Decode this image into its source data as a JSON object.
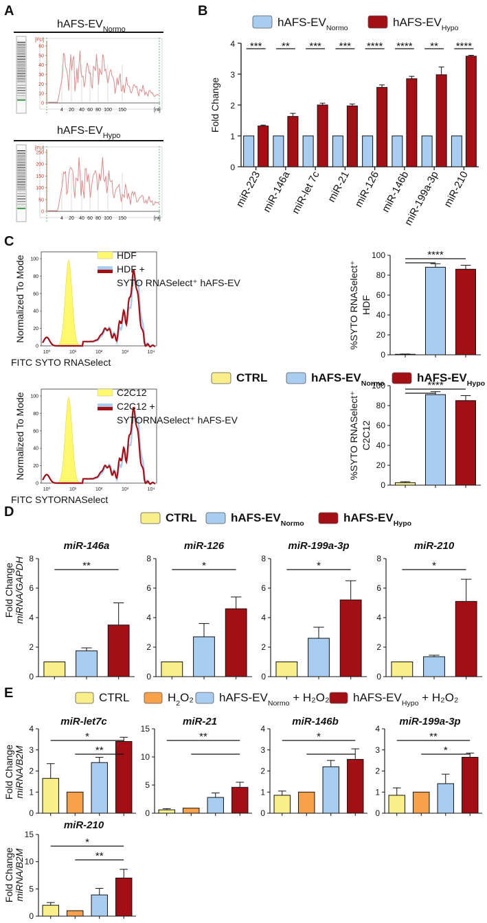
{
  "colors": {
    "ctrl": "#f9ee8a",
    "h2o2": "#f7a14a",
    "normo": "#a9cdf1",
    "hypo": "#a40f16",
    "bioanalyzer_trace": "#d98a8a",
    "bioanalyzer_axis": "#cc2222",
    "histogram_fill": "#fff86a"
  },
  "panels": {
    "A": {
      "label": "A",
      "traces": [
        {
          "title": "hAFS-EV",
          "sub": "Normo",
          "fu_label": "[FU]",
          "y_ticks": [
            "60",
            "50",
            "40",
            "30",
            "20",
            "10",
            "0"
          ],
          "x_ticks": [
            "4",
            "20",
            "40",
            "60",
            "80",
            "100",
            "150"
          ],
          "x_unit": "[nt]"
        },
        {
          "title": "hAFS-EV",
          "sub": "Hypo",
          "fu_label": "[FU]",
          "y_ticks": [
            "250",
            "200",
            "150",
            "100",
            "50",
            "0"
          ],
          "x_ticks": [
            "4",
            "20",
            "40",
            "60",
            "80",
            "100",
            "150"
          ],
          "x_unit": "[nt]"
        }
      ]
    },
    "B": {
      "label": "B",
      "legend": [
        {
          "text": "hAFS-EV",
          "sub": "Normo",
          "color_key": "normo"
        },
        {
          "text": "hAFS-EV",
          "sub": "Hypo",
          "color_key": "hypo"
        }
      ]
    },
    "C": {
      "label": "C",
      "legend": [
        {
          "text": "CTRL",
          "sub": "",
          "color_key": "ctrl"
        },
        {
          "text": "hAFS-EV",
          "sub": "Normo",
          "color_key": "normo"
        },
        {
          "text": "hAFS-EV",
          "sub": "Hypo",
          "color_key": "hypo"
        }
      ],
      "histograms": [
        {
          "ylabel": "Normalized To Mode",
          "xlabel": "FITC SYTO RNASelect",
          "legend": [
            "HDF",
            "HDF +",
            "SYTO RNASelect⁺ hAFS-EV"
          ],
          "y_ticks": [
            "100",
            "80",
            "60",
            "40",
            "20",
            "0"
          ],
          "x_ticks": [
            "10⁰",
            "10¹",
            "10²",
            "10³",
            "10⁴"
          ]
        },
        {
          "ylabel": "Normalized To Mode",
          "xlabel": "FITC SYTORNASelect",
          "legend": [
            "C2C12",
            "C2C12 +",
            "SYTORNASelect⁺ hAFS-EV"
          ],
          "y_ticks": [
            "100",
            "80",
            "60",
            "40",
            "20",
            "0"
          ],
          "x_ticks": [
            "10⁰",
            "10¹",
            "10²",
            "10³",
            "10⁴"
          ]
        }
      ]
    },
    "D": {
      "label": "D",
      "legend": [
        {
          "text": "CTRL",
          "sub": "",
          "color_key": "ctrl"
        },
        {
          "text": "hAFS-EV",
          "sub": "Normo",
          "color_key": "normo"
        },
        {
          "text": "hAFS-EV",
          "sub": "Hypo",
          "color_key": "hypo"
        }
      ],
      "ylabel_1": "Fold Change",
      "ylabel_2": "miRNA/GAPDH"
    },
    "E": {
      "label": "E",
      "legend": [
        {
          "text": "CTRL",
          "sub": "",
          "post": "",
          "color_key": "ctrl"
        },
        {
          "text": "H",
          "sub": "2",
          "post": "O₂",
          "color_key": "h2o2"
        },
        {
          "text": "hAFS-EV",
          "sub": "Normo",
          "post": " + H₂O₂",
          "color_key": "normo"
        },
        {
          "text": "hAFS-EV",
          "sub": "Hypo",
          "post": " + H₂O₂",
          "color_key": "hypo"
        }
      ],
      "ylabel_1": "Fold Change",
      "ylabel_2": "miRNA/B2M"
    }
  },
  "chart_data": [
    {
      "id": "B",
      "type": "bar",
      "title": "",
      "xlabel": "",
      "ylabel": "Fold Change",
      "ylim": [
        0,
        4
      ],
      "yticks": [
        0,
        1,
        2,
        3,
        4
      ],
      "categories": [
        "miR-223",
        "miR-146a",
        "miR-let 7c",
        "miR-21",
        "miR-126",
        "miR-146b",
        "miR-199a-3p",
        "miR-210"
      ],
      "series": [
        {
          "name": "hAFS-EV Normo",
          "values": [
            1,
            1,
            1,
            1,
            1,
            1,
            1,
            1
          ],
          "errors": [
            0,
            0,
            0,
            0,
            0,
            0,
            0,
            0
          ]
        },
        {
          "name": "hAFS-EV Hypo",
          "values": [
            1.32,
            1.63,
            2.0,
            1.97,
            2.57,
            2.85,
            2.98,
            3.58
          ],
          "errors": [
            0.03,
            0.1,
            0.06,
            0.06,
            0.08,
            0.08,
            0.25,
            0.03
          ]
        }
      ],
      "significance": [
        "***",
        "**",
        "***",
        "***",
        "****",
        "****",
        "**",
        "****"
      ]
    },
    {
      "id": "C-HDF",
      "type": "bar",
      "ylabel": "%SYTO RNASelect⁺ HDF",
      "ylim": [
        0,
        100
      ],
      "yticks": [
        0,
        20,
        40,
        60,
        80,
        100
      ],
      "categories": [
        "CTRL",
        "hAFS-EV Normo",
        "hAFS-EV Hypo"
      ],
      "values": [
        0.5,
        88,
        86
      ],
      "errors": [
        0.3,
        3.5,
        4
      ],
      "significance": [
        "****"
      ]
    },
    {
      "id": "C-C2C12",
      "type": "bar",
      "ylabel": "%SYTO RNASelect⁺ C2C12",
      "ylim": [
        0,
        100
      ],
      "yticks": [
        0,
        20,
        40,
        60,
        80,
        100
      ],
      "categories": [
        "CTRL",
        "hAFS-EV Normo",
        "hAFS-EV Hypo"
      ],
      "values": [
        2.5,
        91,
        85
      ],
      "errors": [
        1,
        3,
        5
      ],
      "significance": [
        "****"
      ]
    },
    {
      "id": "D1",
      "type": "bar",
      "title": "miR-146a",
      "ylim": [
        0,
        8
      ],
      "yticks": [
        0,
        2,
        4,
        6,
        8
      ],
      "categories": [
        "CTRL",
        "hAFS-EV Normo",
        "hAFS-EV Hypo"
      ],
      "values": [
        1,
        1.75,
        3.5
      ],
      "errors": [
        0,
        0.2,
        1.5
      ],
      "significance": [
        "**"
      ]
    },
    {
      "id": "D2",
      "type": "bar",
      "title": "miR-126",
      "ylim": [
        0,
        8
      ],
      "yticks": [
        0,
        2,
        4,
        6,
        8
      ],
      "categories": [
        "CTRL",
        "hAFS-EV Normo",
        "hAFS-EV Hypo"
      ],
      "values": [
        1,
        2.7,
        4.6
      ],
      "errors": [
        0,
        0.9,
        0.8
      ],
      "significance": [
        "*"
      ]
    },
    {
      "id": "D3",
      "type": "bar",
      "title": "miR-199a-3p",
      "ylim": [
        0,
        8
      ],
      "yticks": [
        0,
        2,
        4,
        6,
        8
      ],
      "categories": [
        "CTRL",
        "hAFS-EV Normo",
        "hAFS-EV Hypo"
      ],
      "values": [
        1,
        2.6,
        5.2
      ],
      "errors": [
        0,
        0.75,
        1.3
      ],
      "significance": [
        "*"
      ]
    },
    {
      "id": "D4",
      "type": "bar",
      "title": "miR-210",
      "ylim": [
        0,
        8
      ],
      "yticks": [
        0,
        2,
        4,
        6,
        8
      ],
      "categories": [
        "CTRL",
        "hAFS-EV Normo",
        "hAFS-EV Hypo"
      ],
      "values": [
        1,
        1.35,
        5.1
      ],
      "errors": [
        0,
        0.1,
        1.5
      ],
      "significance": [
        "*"
      ]
    },
    {
      "id": "E1",
      "type": "bar",
      "title": "miR-let7c",
      "ylim": [
        0,
        4
      ],
      "yticks": [
        0,
        1,
        2,
        3,
        4
      ],
      "categories": [
        "CTRL",
        "H2O2",
        "hAFS-EV Normo + H2O2",
        "hAFS-EV Hypo + H2O2"
      ],
      "values": [
        1.65,
        1.0,
        2.4,
        3.4
      ],
      "errors": [
        0.7,
        0,
        0.25,
        0.2
      ],
      "significance": [
        "*",
        "**"
      ]
    },
    {
      "id": "E2",
      "type": "bar",
      "title": "miR-21",
      "ylim": [
        0,
        15
      ],
      "yticks": [
        0,
        5,
        10,
        15
      ],
      "categories": [
        "CTRL",
        "H2O2",
        "hAFS-EV Normo + H2O2",
        "hAFS-EV Hypo + H2O2"
      ],
      "values": [
        0.6,
        0.9,
        2.8,
        4.6
      ],
      "errors": [
        0.2,
        0,
        0.8,
        0.9
      ],
      "significance": [
        "**",
        ""
      ]
    },
    {
      "id": "E3",
      "type": "bar",
      "title": "miR-146b",
      "ylim": [
        0,
        4
      ],
      "yticks": [
        0,
        1,
        2,
        3,
        4
      ],
      "categories": [
        "CTRL",
        "H2O2",
        "hAFS-EV Normo + H2O2",
        "hAFS-EV Hypo + H2O2"
      ],
      "values": [
        0.85,
        1.0,
        2.2,
        2.55
      ],
      "errors": [
        0.2,
        0,
        0.3,
        0.5
      ],
      "significance": [
        "*",
        ""
      ]
    },
    {
      "id": "E4",
      "type": "bar",
      "title": "miR-199a-3p",
      "ylim": [
        0,
        4
      ],
      "yticks": [
        0,
        1,
        2,
        3,
        4
      ],
      "categories": [
        "CTRL",
        "H2O2",
        "hAFS-EV Normo + H2O2",
        "hAFS-EV Hypo + H2O2"
      ],
      "values": [
        0.85,
        1.0,
        1.4,
        2.65
      ],
      "errors": [
        0.35,
        0,
        0.45,
        0.2
      ],
      "significance": [
        "**",
        "*"
      ]
    },
    {
      "id": "E5",
      "type": "bar",
      "title": "miR-210",
      "ylim": [
        0,
        15
      ],
      "yticks": [
        0,
        5,
        10,
        15
      ],
      "categories": [
        "CTRL",
        "H2O2",
        "hAFS-EV Normo + H2O2",
        "hAFS-EV Hypo + H2O2"
      ],
      "values": [
        2.0,
        1.0,
        3.9,
        7.0
      ],
      "errors": [
        0.5,
        0,
        1.2,
        1.6
      ],
      "significance": [
        "*",
        "**"
      ]
    }
  ]
}
